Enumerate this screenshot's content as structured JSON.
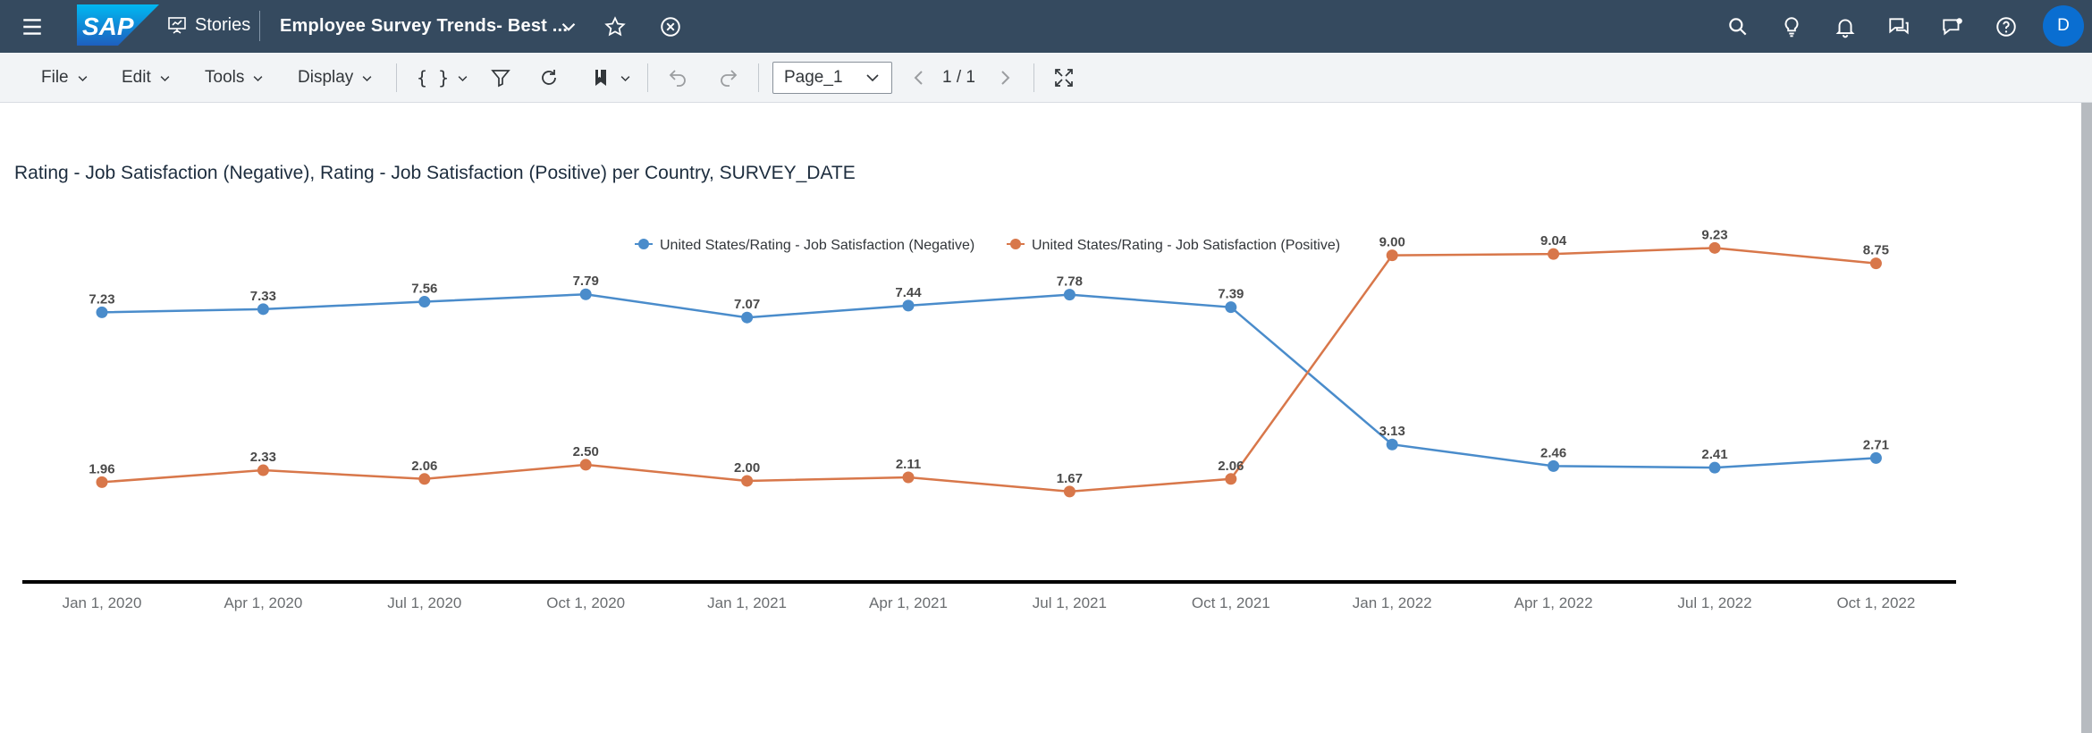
{
  "shell": {
    "stories_label": "Stories",
    "story_title": "Employee Survey Trends- Best ...",
    "avatar_initial": "D"
  },
  "toolbar": {
    "file_label": "File",
    "edit_label": "Edit",
    "tools_label": "Tools",
    "display_label": "Display",
    "formula_label": "{ }",
    "page_select_value": "Page_1",
    "page_count": "1 / 1"
  },
  "colors": {
    "shell_bg": "#354a5f",
    "negative_series": "#4a8ccb",
    "positive_series": "#d8774a",
    "accent": "#0a6ed1"
  },
  "chart_data": {
    "type": "line",
    "title": "Rating - Job Satisfaction (Negative), Rating - Job Satisfaction (Positive) per Country, SURVEY_DATE",
    "legend_position": "top-center",
    "categories": [
      "Jan 1, 2020",
      "Apr 1, 2020",
      "Jul 1, 2020",
      "Oct 1, 2020",
      "Jan 1, 2021",
      "Apr 1, 2021",
      "Jul 1, 2021",
      "Oct 1, 2021",
      "Jan 1, 2022",
      "Apr 1, 2022",
      "Jul 1, 2022",
      "Oct 1, 2022"
    ],
    "series": [
      {
        "name": "United States/Rating - Job Satisfaction (Negative)",
        "color": "#4a8ccb",
        "values": [
          7.23,
          7.33,
          7.56,
          7.79,
          7.07,
          7.44,
          7.78,
          7.39,
          3.13,
          2.46,
          2.41,
          2.71
        ],
        "labels": [
          "7.23",
          "7.33",
          "7.56",
          "7.79",
          "7.07",
          "7.44",
          "7.78",
          "7.39",
          "3.13",
          "2.46",
          "2.41",
          "2.71"
        ]
      },
      {
        "name": "United States/Rating - Job Satisfaction (Positive)",
        "color": "#d8774a",
        "values": [
          1.96,
          2.33,
          2.06,
          2.5,
          2.0,
          2.11,
          1.67,
          2.06,
          9.0,
          9.04,
          9.23,
          8.75
        ],
        "labels": [
          "1.96",
          "2.33",
          "2.06",
          "2.50",
          "2.00",
          "2.11",
          "1.67",
          "2.06",
          "9.00",
          "9.04",
          "9.23",
          "8.75"
        ]
      }
    ],
    "grid": false
  }
}
